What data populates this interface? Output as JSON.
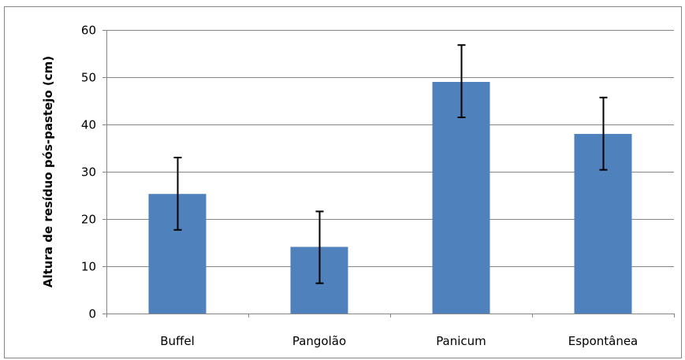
{
  "chart_data": {
    "type": "bar",
    "title": "",
    "xlabel": "",
    "ylabel": "Altura de resíduo pós-pastejo (cm)",
    "categories": [
      "Buffel",
      "Pangolão",
      "Panicum",
      "Espontânea"
    ],
    "values": [
      25.3,
      14.1,
      49,
      38
    ],
    "error_low": [
      17.7,
      6.4,
      41.5,
      30.4
    ],
    "error_high": [
      33,
      21.6,
      56.8,
      45.7
    ],
    "ylim": [
      0,
      60
    ],
    "yticks": [
      0,
      10,
      20,
      30,
      40,
      50,
      60
    ],
    "ytick_labels": [
      "0",
      "10",
      "20",
      "30",
      "40",
      "50",
      "60"
    ],
    "grid": true,
    "legend": "none",
    "bar_color": "#4f81bd",
    "error_color": "#000000",
    "grid_color": "#868686"
  }
}
